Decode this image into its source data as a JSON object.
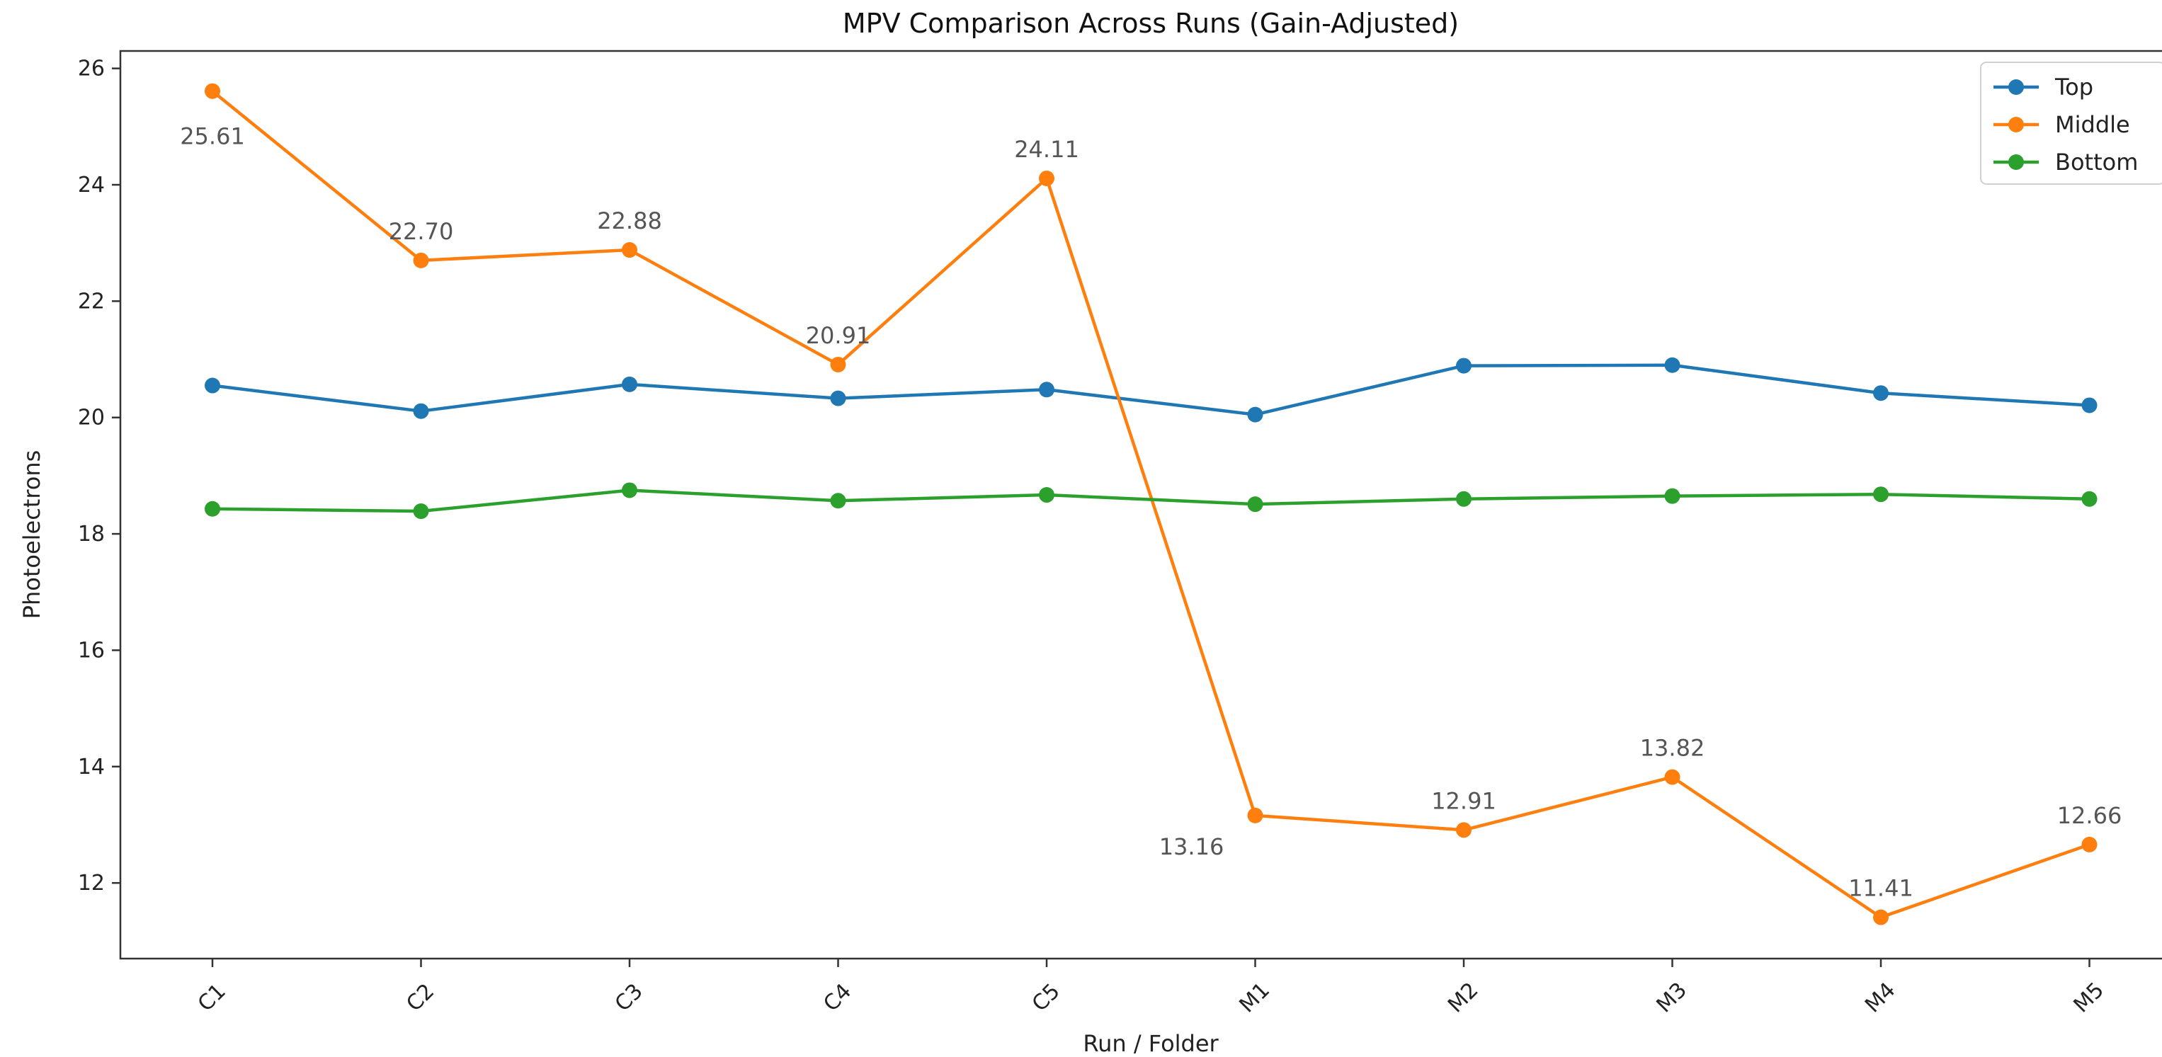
{
  "chart_data": {
    "type": "line",
    "title": "MPV Comparison Across Runs (Gain-Adjusted)",
    "xlabel": "Run / Folder",
    "ylabel": "Photoelectrons",
    "categories": [
      "C1",
      "C2",
      "C3",
      "C4",
      "C5",
      "M1",
      "M2",
      "M3",
      "M4",
      "M5"
    ],
    "ylim": [
      10.7,
      26.3
    ],
    "yticks": [
      12,
      14,
      16,
      18,
      20,
      22,
      24,
      26
    ],
    "grid": false,
    "legend_position": "top-right",
    "series": [
      {
        "name": "Top",
        "color": "#1f77b4",
        "values": [
          20.55,
          20.11,
          20.57,
          20.33,
          20.48,
          20.05,
          20.89,
          20.9,
          20.42,
          20.21
        ]
      },
      {
        "name": "Middle",
        "color": "#ff7f0e",
        "values": [
          25.61,
          22.7,
          22.88,
          20.91,
          24.11,
          13.16,
          12.91,
          13.82,
          11.41,
          12.66
        ],
        "data_labels": [
          "25.61",
          "22.70",
          "22.88",
          "20.91",
          "24.11",
          "13.16",
          "12.91",
          "13.82",
          "11.41",
          "12.66"
        ]
      },
      {
        "name": "Bottom",
        "color": "#2ca02c",
        "values": [
          18.43,
          18.39,
          18.75,
          18.57,
          18.67,
          18.51,
          18.6,
          18.65,
          18.68,
          18.6
        ]
      }
    ]
  }
}
